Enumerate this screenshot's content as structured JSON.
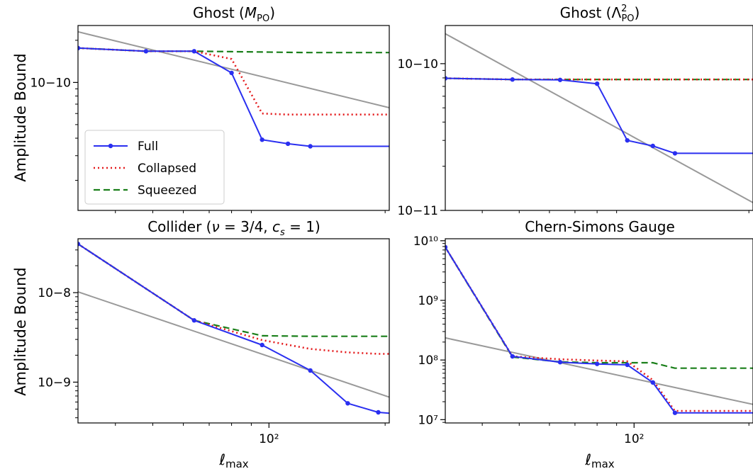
{
  "figure": {
    "ylabel": "Amplitude Bound",
    "xlabel": "ℓmax",
    "colors": {
      "full": "#2a2ff0",
      "collapsed": "#e41a1c",
      "squeezed": "#1a7f1a",
      "reference": "#999999"
    }
  },
  "chart_data": [
    {
      "type": "line",
      "title": "Ghost (M_PO)",
      "xscale": "log",
      "yscale": "log",
      "xlim": [
        32,
        205
      ],
      "ylim": [
        1.22e-11,
        2.55e-10
      ],
      "ytick_labels": [
        {
          "value": 1e-10,
          "label": "10−10"
        }
      ],
      "xtick_labels": [],
      "legend": {
        "placement": "lower-left",
        "entries": [
          "Full",
          "Collapsed",
          "Squeezed"
        ]
      },
      "x": [
        32,
        48,
        64,
        80,
        96,
        112,
        128,
        205
      ],
      "series": [
        {
          "name": "Full",
          "style": "solid-markers",
          "values": [
            1.76e-10,
            1.67e-10,
            1.67e-10,
            1.17e-10,
            3.9e-11,
            3.65e-11,
            3.5e-11,
            3.5e-11
          ]
        },
        {
          "name": "Collapsed",
          "style": "dotted",
          "values": [
            1.76e-10,
            1.67e-10,
            1.67e-10,
            1.47e-10,
            6e-11,
            5.9e-11,
            5.9e-11,
            5.9e-11
          ]
        },
        {
          "name": "Squeezed",
          "style": "dashed",
          "values": [
            1.76e-10,
            1.67e-10,
            1.67e-10,
            1.66e-10,
            1.65e-10,
            1.64e-10,
            1.635e-10,
            1.635e-10
          ]
        },
        {
          "name": "",
          "style": "reference",
          "values": [
            2.3e-10,
            null,
            null,
            null,
            null,
            null,
            null,
            6.6e-11
          ]
        }
      ]
    },
    {
      "type": "line",
      "title": "Ghost (Λ²_PO)",
      "xscale": "log",
      "yscale": "log",
      "xlim": [
        32,
        205
      ],
      "ylim": [
        1e-11,
        1.82e-10
      ],
      "ytick_labels": [
        {
          "value": 1e-10,
          "label": "10−10"
        },
        {
          "value": 1e-11,
          "label": "10−11"
        }
      ],
      "xtick_labels": [],
      "x": [
        32,
        48,
        64,
        80,
        96,
        112,
        128,
        205
      ],
      "series": [
        {
          "name": "Full",
          "style": "solid-markers",
          "values": [
            7.95e-11,
            7.8e-11,
            7.75e-11,
            7.3e-11,
            3e-11,
            2.75e-11,
            2.45e-11,
            2.45e-11
          ]
        },
        {
          "name": "Collapsed",
          "style": "dotted",
          "values": [
            7.95e-11,
            7.8e-11,
            7.8e-11,
            7.8e-11,
            7.8e-11,
            7.8e-11,
            7.8e-11,
            7.8e-11
          ]
        },
        {
          "name": "Squeezed",
          "style": "dashed",
          "values": [
            7.95e-11,
            7.8e-11,
            7.8e-11,
            7.8e-11,
            7.8e-11,
            7.8e-11,
            7.8e-11,
            7.8e-11
          ]
        },
        {
          "name": "",
          "style": "reference",
          "values": [
            1.6e-10,
            null,
            null,
            null,
            null,
            null,
            null,
            1.13e-11
          ]
        }
      ]
    },
    {
      "type": "line",
      "title": "Collider (ν = 3/4, c_s = 1)",
      "xscale": "log",
      "yscale": "log",
      "xlim": [
        32,
        205
      ],
      "ylim": [
        3.5e-10,
        4e-08
      ],
      "ytick_labels": [
        {
          "value": 1e-08,
          "label": "10−8"
        },
        {
          "value": 1e-09,
          "label": "10−9"
        }
      ],
      "xtick_labels": [
        {
          "value": 100,
          "label": "10²"
        }
      ],
      "x": [
        32,
        64,
        96,
        128,
        160,
        192,
        205
      ],
      "series": [
        {
          "name": "Full",
          "style": "solid-markers",
          "values": [
            3.5e-08,
            4.9e-09,
            2.6e-09,
            1.35e-09,
            5.8e-10,
            4.6e-10,
            4.5e-10
          ]
        },
        {
          "name": "Collapsed",
          "style": "dotted",
          "values": [
            3.5e-08,
            4.9e-09,
            2.95e-09,
            2.35e-09,
            2.15e-09,
            2.07e-09,
            2.07e-09
          ]
        },
        {
          "name": "Squeezed",
          "style": "dashed",
          "values": [
            3.5e-08,
            4.9e-09,
            3.3e-09,
            3.25e-09,
            3.25e-09,
            3.25e-09,
            3.25e-09
          ]
        },
        {
          "name": "",
          "style": "reference",
          "values": [
            1.02e-08,
            null,
            null,
            null,
            null,
            null,
            6.8e-10
          ]
        }
      ]
    },
    {
      "type": "line",
      "title": "Chern-Simons Gauge",
      "xscale": "log",
      "yscale": "log",
      "xlim": [
        32,
        205
      ],
      "ylim": [
        8800000.0,
        10800000000.0
      ],
      "ytick_labels": [
        {
          "value": 10000000000.0,
          "label": "10¹⁰"
        },
        {
          "value": 1000000000.0,
          "label": "10⁹"
        },
        {
          "value": 100000000.0,
          "label": "10⁸"
        },
        {
          "value": 10000000.0,
          "label": "10⁷"
        }
      ],
      "xtick_labels": [
        {
          "value": 100,
          "label": "10²"
        }
      ],
      "x": [
        32,
        48,
        64,
        80,
        96,
        112,
        128,
        205
      ],
      "series": [
        {
          "name": "Full",
          "style": "solid-markers",
          "values": [
            7800000000.0,
            115000000.0,
            92000000.0,
            86000000.0,
            83000000.0,
            42000000.0,
            13000000.0,
            13000000.0
          ]
        },
        {
          "name": "Collapsed",
          "style": "dotted",
          "values": [
            7800000000.0,
            115000000.0,
            103000000.0,
            98000000.0,
            95000000.0,
            46000000.0,
            14000000.0,
            14000000.0
          ]
        },
        {
          "name": "Squeezed",
          "style": "dashed",
          "values": [
            7800000000.0,
            112000000.0,
            93000000.0,
            90000000.0,
            90000000.0,
            90000000.0,
            73000000.0,
            73000000.0
          ]
        },
        {
          "name": "",
          "style": "reference",
          "values": [
            235000000.0,
            null,
            null,
            null,
            null,
            null,
            null,
            18000000.0
          ]
        }
      ]
    }
  ]
}
